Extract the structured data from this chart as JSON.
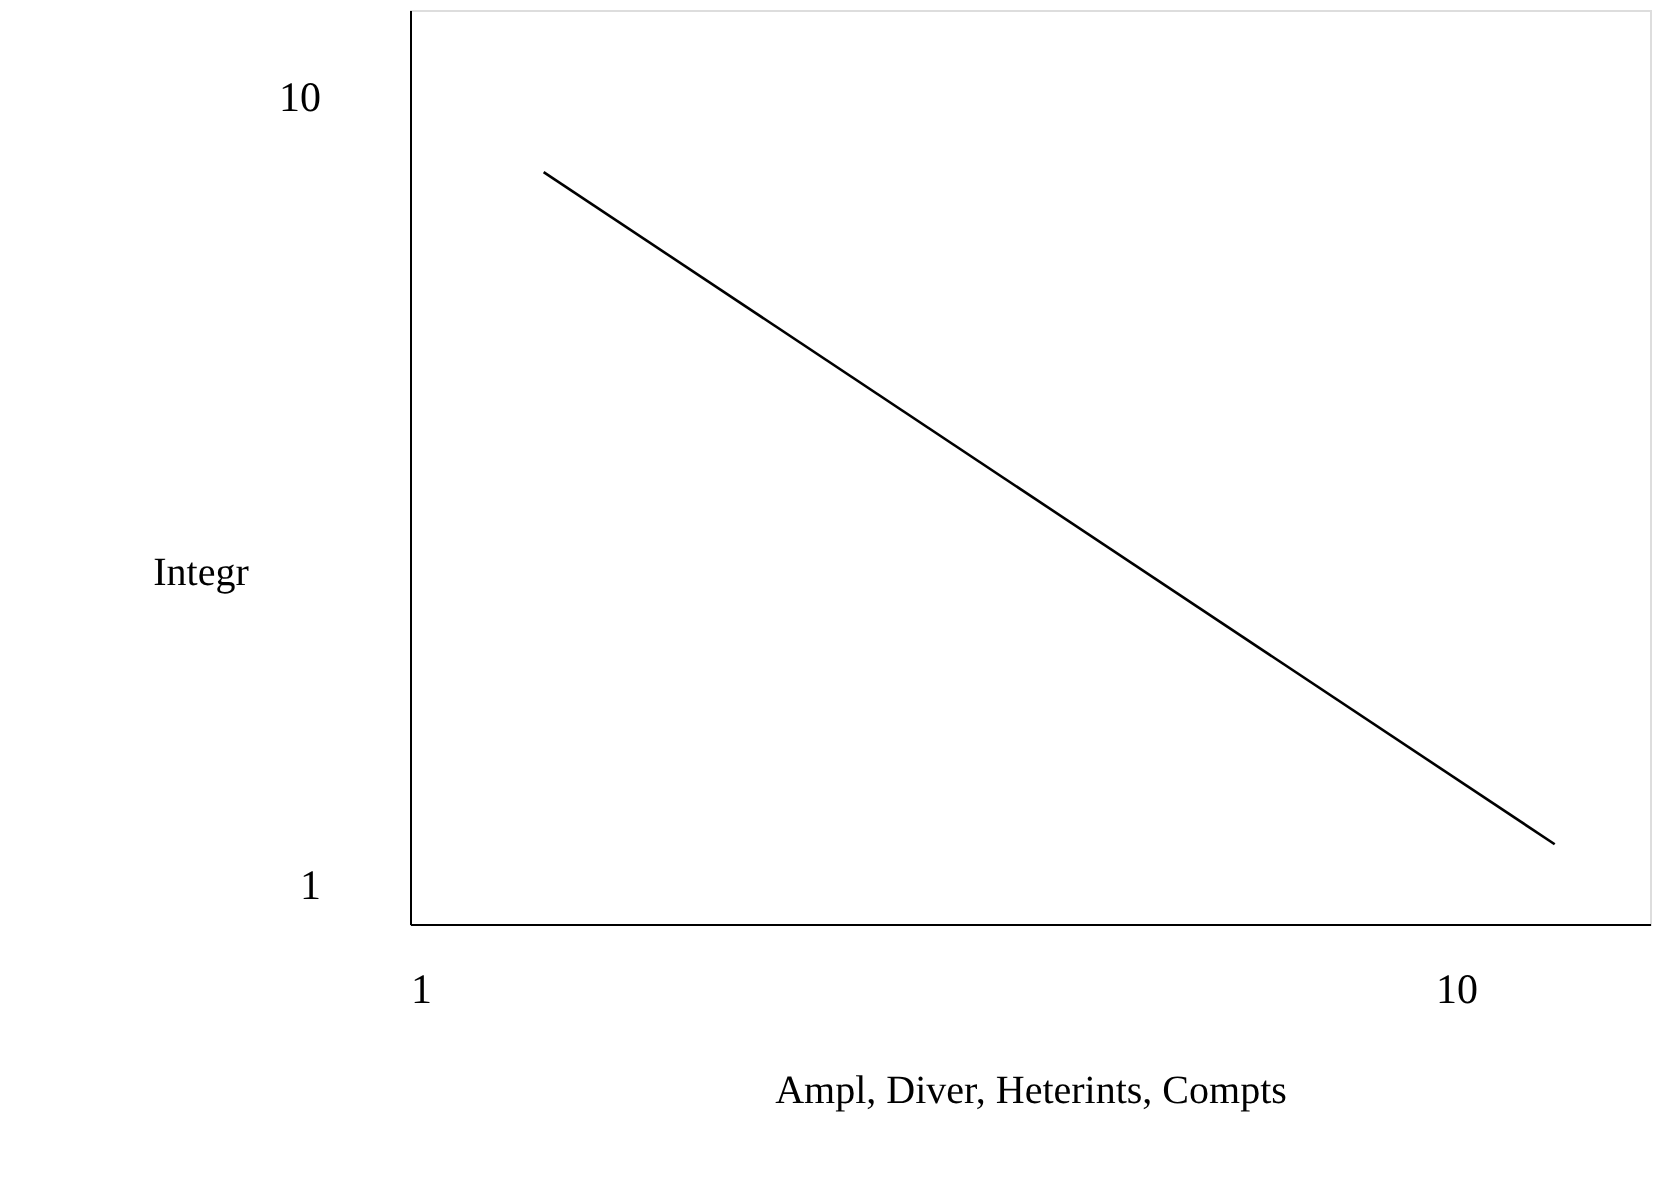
{
  "chart_data": {
    "type": "line",
    "xlabel": "Ampl, Diver, Heterints, Compts",
    "ylabel": "Integr",
    "x": [
      2.15,
      10.85
    ],
    "values": [
      9.15,
      1.48
    ],
    "color": "#000000",
    "xlim": [
      1,
      11.67
    ],
    "ylim": [
      0.57,
      11.0
    ],
    "xticks": [
      1,
      10
    ],
    "yticks": [
      1,
      10
    ]
  }
}
